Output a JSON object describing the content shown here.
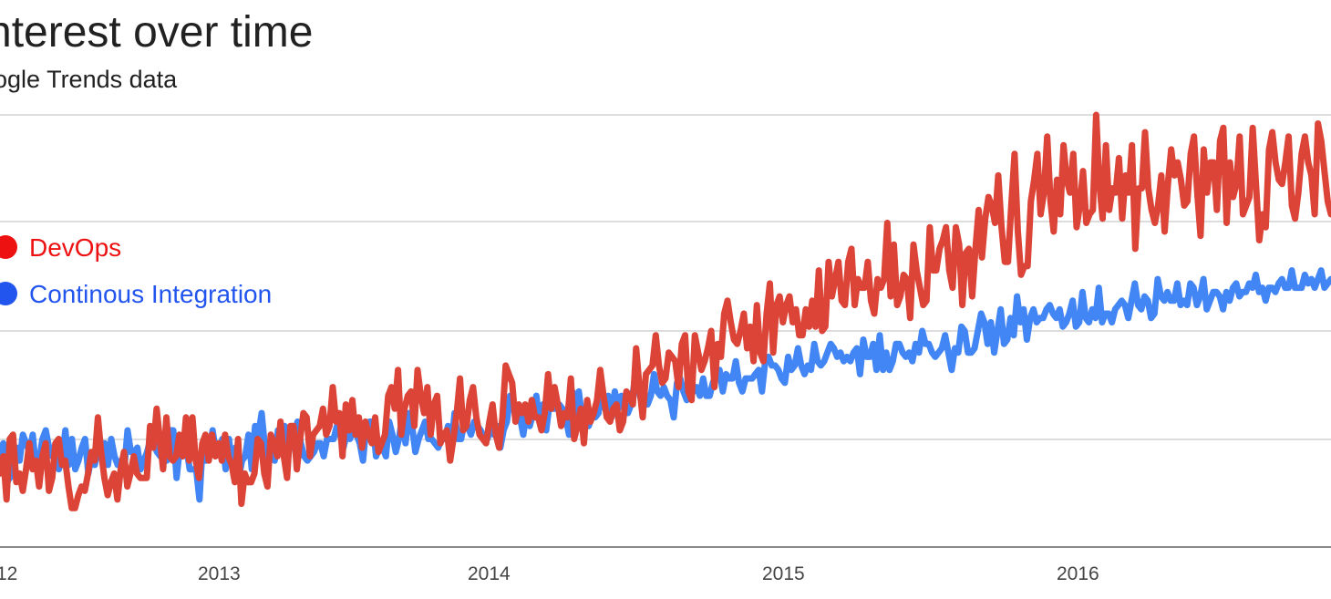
{
  "header": {
    "title": "nterest over time",
    "subtitle": "oogle Trends data"
  },
  "colors": {
    "devops": "#db4437",
    "ci": "#4285f4",
    "legend_devops": "#ee1111",
    "legend_ci": "#2255ee",
    "grid": "#dddddd",
    "axis": "#888888"
  },
  "chart_data": {
    "type": "line",
    "title": "nterest over time",
    "subtitle": "oogle Trends data",
    "x_range": [
      "2012",
      "2016"
    ],
    "xticks": [
      "12",
      "2013",
      "2014",
      "2015",
      "2016"
    ],
    "grid": true,
    "legend_position": "left",
    "series": [
      {
        "name": "DevOps",
        "values": [
          17,
          21,
          11,
          25,
          26,
          15,
          17,
          13,
          18,
          24,
          18,
          20,
          14,
          21,
          24,
          13,
          16,
          24,
          25,
          19,
          20,
          14,
          9,
          9,
          12,
          14,
          13,
          17,
          22,
          20,
          30,
          22,
          16,
          12,
          15,
          17,
          11,
          18,
          22,
          14,
          17,
          21,
          17,
          16,
          16,
          16,
          28,
          23,
          32,
          25,
          18,
          30,
          21,
          20,
          21,
          26,
          21,
          30,
          20,
          30,
          20,
          16,
          24,
          26,
          20,
          26,
          21,
          24,
          20,
          26,
          21,
          19,
          15,
          25,
          10,
          17,
          15,
          15,
          17,
          25,
          24,
          17,
          14,
          26,
          24,
          21,
          29,
          21,
          16,
          28,
          28,
          18,
          25,
          31,
          30,
          21,
          26,
          27,
          28,
          32,
          26,
          28,
          37,
          29,
          31,
          21,
          33,
          27,
          34,
          26,
          30,
          23,
          29,
          26,
          24,
          30,
          22,
          24,
          26,
          35,
          37,
          32,
          41,
          26,
          32,
          35,
          36,
          28,
          41,
          35,
          31,
          37,
          26,
          33,
          35,
          24,
          26,
          27,
          20,
          25,
          31,
          39,
          27,
          28,
          34,
          37,
          30,
          26,
          25,
          24,
          29,
          33,
          26,
          23,
          30,
          42,
          40,
          38,
          29,
          33,
          31,
          33,
          29,
          34,
          30,
          30,
          27,
          31,
          40,
          32,
          37,
          33,
          28,
          31,
          30,
          39,
          25,
          28,
          32,
          24,
          34,
          29,
          31,
          34,
          41,
          35,
          30,
          29,
          32,
          33,
          27,
          29,
          36,
          35,
          33,
          46,
          37,
          30,
          40,
          41,
          42,
          49,
          42,
          38,
          39,
          45,
          44,
          43,
          37,
          47,
          49,
          36,
          34,
          49,
          45,
          41,
          43,
          46,
          50,
          37,
          47,
          44,
          54,
          57,
          52,
          48,
          47,
          50,
          54,
          46,
          51,
          43,
          56,
          45,
          43,
          54,
          61,
          45,
          56,
          58,
          52,
          56,
          58,
          52,
          55,
          49,
          49,
          55,
          51,
          57,
          51,
          64,
          50,
          51,
          66,
          58,
          62,
          66,
          57,
          56,
          66,
          69,
          56,
          62,
          60,
          60,
          66,
          57,
          54,
          62,
          60,
          62,
          75,
          58,
          70,
          56,
          58,
          63,
          62,
          53,
          70,
          64,
          60,
          56,
          57,
          74,
          64,
          64,
          69,
          71,
          74,
          64,
          60,
          74,
          70,
          56,
          68,
          69,
          58,
          69,
          78,
          67,
          76,
          81,
          79,
          75,
          86,
          74,
          66,
          66,
          79,
          91,
          73,
          63,
          65,
          65,
          80,
          85,
          91,
          77,
          82,
          95,
          80,
          73,
          85,
          77,
          93,
          85,
          82,
          91,
          74,
          79,
          87,
          75,
          77,
          78,
          100,
          84,
          76,
          93,
          78,
          83,
          82,
          90,
          76,
          86,
          82,
          93,
          69,
          83,
          83,
          96,
          83,
          78,
          75,
          79,
          86,
          73,
          84,
          92,
          86,
          89,
          85,
          79,
          80,
          91,
          95,
          82,
          72,
          92,
          82,
          89,
          89,
          78,
          94,
          97,
          75,
          89,
          81,
          84,
          95,
          77,
          79,
          81,
          97,
          84,
          71,
          77,
          74,
          92,
          96,
          89,
          85,
          84,
          89,
          95,
          79,
          76,
          82,
          91,
          95,
          89,
          86,
          77,
          98,
          94,
          87,
          80,
          77
        ]
      },
      {
        "name": "Continous Integration",
        "values": [
          21,
          24,
          15,
          16,
          23,
          23,
          20,
          26,
          24,
          22,
          26,
          18,
          20,
          25,
          27,
          23,
          21,
          24,
          18,
          21,
          27,
          19,
          25,
          18,
          20,
          23,
          25,
          17,
          21,
          19,
          23,
          21,
          24,
          19,
          25,
          21,
          19,
          20,
          18,
          27,
          22,
          22,
          23,
          18,
          20,
          22,
          25,
          24,
          22,
          21,
          26,
          20,
          27,
          27,
          16,
          23,
          25,
          23,
          18,
          18,
          18,
          11,
          24,
          20,
          22,
          27,
          22,
          22,
          25,
          18,
          25,
          19,
          23,
          16,
          20,
          21,
          26,
          18,
          28,
          26,
          31,
          23,
          20,
          23,
          20,
          27,
          26,
          28,
          20,
          27,
          26,
          29,
          24,
          21,
          20,
          21,
          22,
          24,
          24,
          21,
          25,
          25,
          25,
          28,
          26,
          23,
          26,
          25,
          27,
          26,
          24,
          20,
          28,
          29,
          29,
          21,
          23,
          23,
          21,
          29,
          26,
          22,
          25,
          30,
          24,
          31,
          28,
          22,
          25,
          27,
          29,
          25,
          25,
          24,
          23,
          25,
          25,
          28,
          23,
          31,
          25,
          25,
          29,
          28,
          26,
          29,
          28,
          27,
          25,
          25,
          27,
          26,
          28,
          23,
          27,
          29,
          35,
          32,
          30,
          30,
          26,
          31,
          28,
          31,
          35,
          29,
          33,
          27,
          33,
          32,
          32,
          33,
          32,
          30,
          26,
          36,
          28,
          36,
          30,
          32,
          28,
          30,
          30,
          31,
          38,
          32,
          35,
          30,
          36,
          32,
          35,
          32,
          31,
          33,
          38,
          37,
          34,
          36,
          33,
          35,
          40,
          36,
          35,
          37,
          35,
          34,
          30,
          38,
          39,
          36,
          34,
          35,
          36,
          37,
          35,
          39,
          35,
          35,
          38,
          40,
          41,
          36,
          40,
          39,
          39,
          43,
          38,
          36,
          39,
          39,
          39,
          40,
          41,
          36,
          43,
          44,
          42,
          42,
          41,
          39,
          38,
          44,
          41,
          42,
          46,
          42,
          40,
          42,
          41,
          47,
          43,
          42,
          43,
          45,
          47,
          46,
          44,
          45,
          43,
          44,
          43,
          45,
          46,
          40,
          48,
          44,
          44,
          47,
          41,
          49,
          41,
          45,
          41,
          43,
          47,
          47,
          45,
          44,
          45,
          43,
          47,
          45,
          50,
          47,
          47,
          45,
          44,
          45,
          46,
          49,
          45,
          41,
          46,
          45,
          51,
          50,
          45,
          45,
          46,
          50,
          54,
          52,
          47,
          52,
          45,
          50,
          55,
          47,
          48,
          53,
          49,
          58,
          52,
          55,
          48,
          53,
          55,
          52,
          53,
          53,
          55,
          56,
          54,
          53,
          55,
          51,
          52,
          54,
          57,
          51,
          52,
          59,
          53,
          52,
          55,
          53,
          60,
          52,
          54,
          54,
          52,
          55,
          56,
          57,
          56,
          53,
          57,
          61,
          56,
          55,
          58,
          57,
          53,
          54,
          62,
          58,
          57,
          59,
          57,
          57,
          61,
          56,
          57,
          56,
          61,
          60,
          56,
          58,
          62,
          55,
          57,
          59,
          59,
          58,
          55,
          59,
          57,
          60,
          61,
          58,
          59,
          59,
          61,
          60,
          63,
          59,
          60,
          57,
          60,
          60,
          59,
          61,
          62,
          60,
          60,
          64,
          60,
          60,
          60,
          63,
          61,
          62,
          60,
          62,
          64,
          60,
          61,
          62
        ]
      }
    ]
  }
}
